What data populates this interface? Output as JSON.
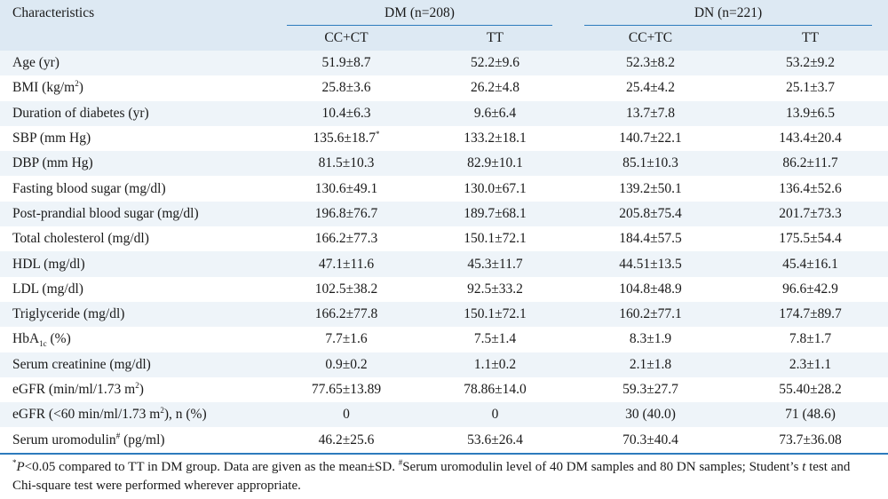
{
  "table": {
    "header_left": "Characteristics",
    "groups": [
      {
        "label": "DM (n=208)",
        "subheaders": [
          "CC+CT",
          "TT"
        ]
      },
      {
        "label": "DN (n=221)",
        "subheaders": [
          "CC+TC",
          "TT"
        ]
      }
    ],
    "rows": [
      {
        "label": "Age (yr)",
        "values": [
          "51.9±8.7",
          "52.2±9.6",
          "52.3±8.2",
          "53.2±9.2"
        ]
      },
      {
        "label_pre": "BMI (kg/m",
        "label_sup": "2",
        "label_post": ")",
        "values": [
          "25.8±3.6",
          "26.2±4.8",
          "25.4±4.2",
          "25.1±3.7"
        ]
      },
      {
        "label": "Duration of diabetes (yr)",
        "values": [
          "10.4±6.3",
          "9.6±6.4",
          "13.7±7.8",
          "13.9±6.5"
        ]
      },
      {
        "label": "SBP (mm Hg)",
        "values": [
          "135.6±18.7",
          "133.2±18.1",
          "140.7±22.1",
          "143.4±20.4"
        ],
        "first_sup": "*"
      },
      {
        "label": "DBP (mm Hg)",
        "values": [
          "81.5±10.3",
          "82.9±10.1",
          "85.1±10.3",
          "86.2±11.7"
        ]
      },
      {
        "label": "Fasting blood sugar (mg/dl)",
        "values": [
          "130.6±49.1",
          "130.0±67.1",
          "139.2±50.1",
          "136.4±52.6"
        ]
      },
      {
        "label": "Post-prandial blood sugar (mg/dl)",
        "values": [
          "196.8±76.7",
          "189.7±68.1",
          "205.8±75.4",
          "201.7±73.3"
        ]
      },
      {
        "label": "Total cholesterol (mg/dl)",
        "values": [
          "166.2±77.3",
          "150.1±72.1",
          "184.4±57.5",
          "175.5±54.4"
        ]
      },
      {
        "label": "HDL (mg/dl)",
        "values": [
          "47.1±11.6",
          "45.3±11.7",
          "44.51±13.5",
          "45.4±16.1"
        ]
      },
      {
        "label": "LDL (mg/dl)",
        "values": [
          "102.5±38.2",
          "92.5±33.2",
          "104.8±48.9",
          "96.6±42.9"
        ]
      },
      {
        "label": "Triglyceride (mg/dl)",
        "values": [
          "166.2±77.8",
          "150.1±72.1",
          "160.2±77.1",
          "174.7±89.7"
        ]
      },
      {
        "label_pre": "HbA",
        "label_sub": "1c",
        "label_post": " (%)",
        "values": [
          "7.7±1.6",
          "7.5±1.4",
          "8.3±1.9",
          "7.8±1.7"
        ]
      },
      {
        "label": "Serum creatinine (mg/dl)",
        "values": [
          "0.9±0.2",
          "1.1±0.2",
          "2.1±1.8",
          "2.3±1.1"
        ]
      },
      {
        "label_pre": "eGFR (min/ml/1.73 m",
        "label_sup": "2",
        "label_post": ")",
        "values": [
          "77.65±13.89",
          "78.86±14.0",
          "59.3±27.7",
          "55.40±28.2"
        ]
      },
      {
        "label_pre": "eGFR (<60 min/ml/1.73 m",
        "label_sup": "2",
        "label_post": "), n (%)",
        "values": [
          "0",
          "0",
          "30 (40.0)",
          "71 (48.6)"
        ]
      },
      {
        "label_pre": "Serum uromodulin",
        "label_sup": "#",
        "label_post": " (pg/ml)",
        "values": [
          "46.2±25.6",
          "53.6±26.4",
          "70.3±40.4",
          "73.7±36.08"
        ]
      }
    ]
  },
  "footnote": {
    "sup1": "*",
    "p_italic": "P",
    "part1": "<0.05 compared to TT in DM group. Data are given as the mean±SD. ",
    "sup2": "#",
    "part2": "Serum uromodulin level of 40 DM samples and 80 DN samples; Student’s ",
    "t_italic": "t",
    "part3": " test and Chi-square test were performed wherever appropriate."
  }
}
